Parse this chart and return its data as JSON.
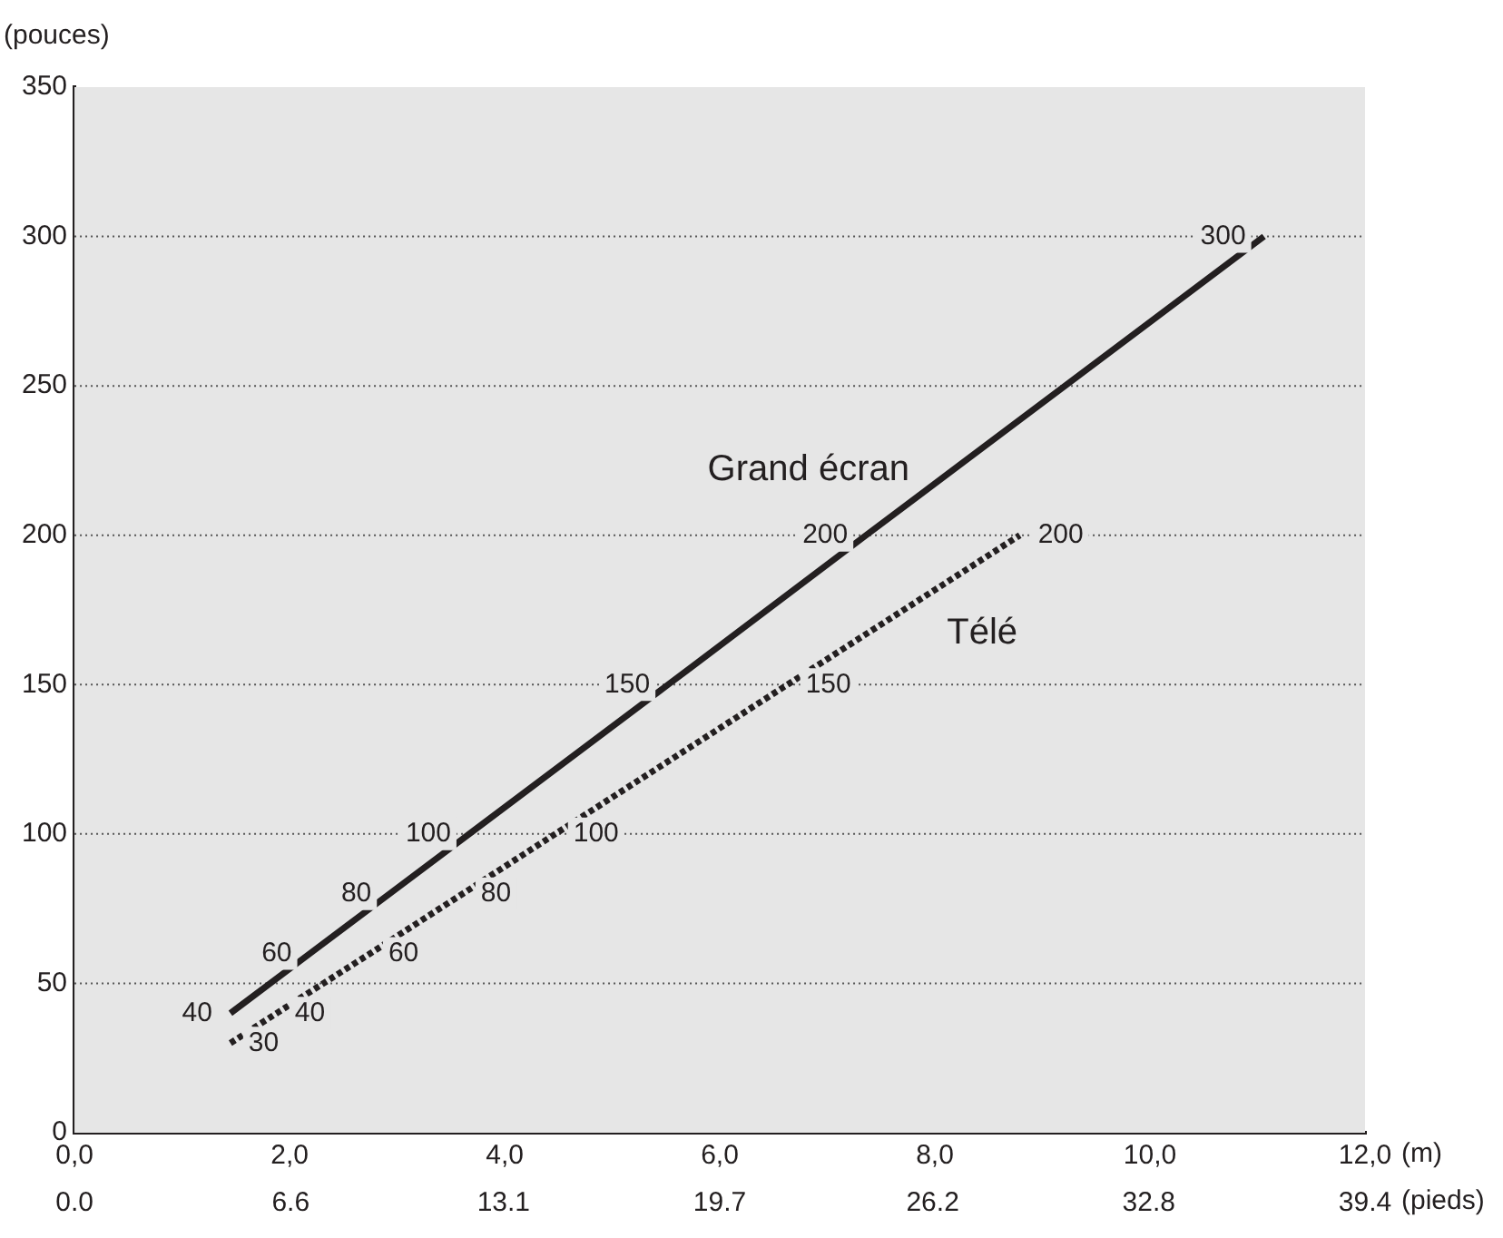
{
  "chart_data": {
    "type": "line",
    "ylabel": "(pouces)",
    "xlabel": "(m)",
    "x2label": "(pieds)",
    "xlim": [
      0,
      12
    ],
    "xticks": [
      {
        "value": 0,
        "label": "0,0"
      },
      {
        "value": 2,
        "label": "2,0"
      },
      {
        "value": 4,
        "label": "4,0"
      },
      {
        "value": 6,
        "label": "6,0"
      },
      {
        "value": 8,
        "label": "8,0"
      },
      {
        "value": 10,
        "label": "10,0"
      },
      {
        "value": 12,
        "label": "12,0"
      }
    ],
    "x2lim": [
      0,
      39.4
    ],
    "x2ticks": [
      {
        "value": 0,
        "label": "0.0"
      },
      6.6,
      13.1,
      19.7,
      26.2,
      32.8,
      39.4
    ],
    "ylim": [
      0,
      350
    ],
    "yticks": [
      0,
      50,
      100,
      150,
      200,
      250,
      300,
      350
    ],
    "grid": "y",
    "legend": false,
    "marker": "none",
    "data_labels": true,
    "series": [
      {
        "name": "Grand écran",
        "color": "#231f20",
        "line_style": "solid",
        "x": [
          1.45,
          2.19,
          2.93,
          3.67,
          5.52,
          7.36,
          11.06
        ],
        "values": [
          40,
          60,
          80,
          100,
          150,
          200,
          300
        ]
      },
      {
        "name": "Télé",
        "color": "#231f20",
        "line_style": "dotted",
        "x": [
          1.45,
          1.88,
          2.75,
          3.61,
          4.47,
          6.63,
          8.79
        ],
        "values": [
          30,
          40,
          60,
          80,
          100,
          150,
          200
        ]
      }
    ]
  }
}
